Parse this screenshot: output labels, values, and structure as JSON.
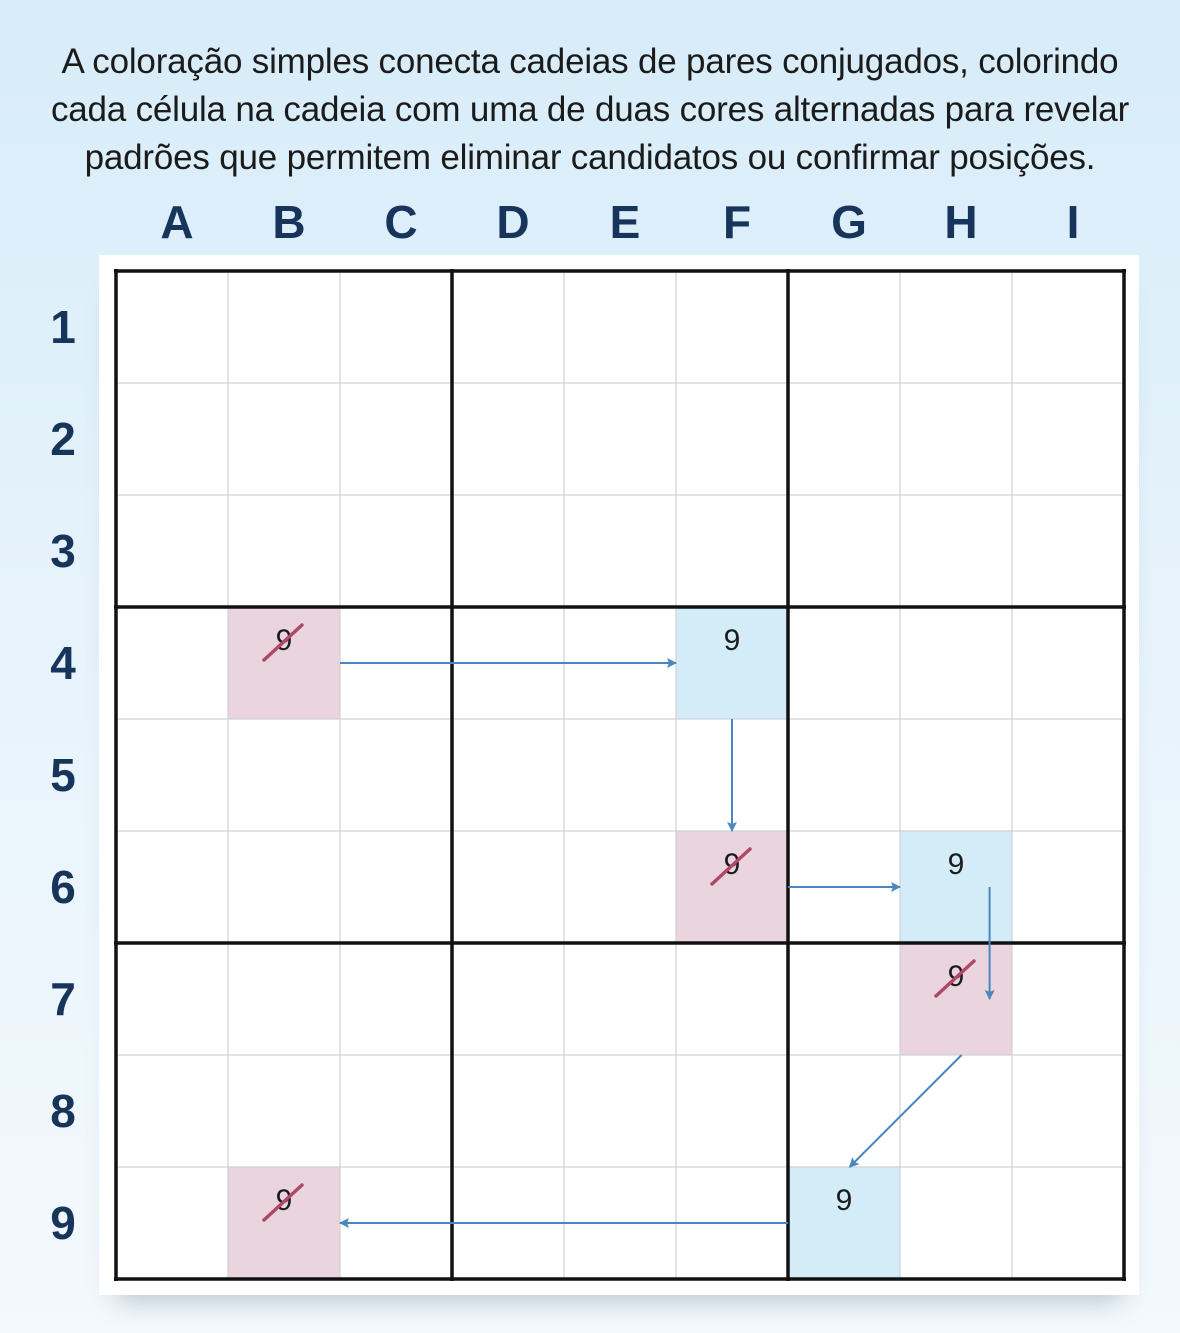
{
  "caption_lines": [
    "A coloração simples conecta cadeias de pares conjugados, colorindo",
    "cada célula na cadeia com uma de duas cores alternadas para revelar",
    "padrões que permitem eliminar candidatos ou confirmar posições."
  ],
  "columns": [
    "A",
    "B",
    "C",
    "D",
    "E",
    "F",
    "G",
    "H",
    "I"
  ],
  "rows": [
    "1",
    "2",
    "3",
    "4",
    "5",
    "6",
    "7",
    "8",
    "9"
  ],
  "colors": {
    "blue_cell": "#d3ecf8",
    "pink_cell": "#ead4de",
    "arrow": "#4a86c0",
    "strike": "#b04869",
    "row_col_label": "#17345a"
  },
  "chain": [
    {
      "cell": "B4",
      "digit": "9",
      "color": "pink",
      "eliminated": true
    },
    {
      "cell": "F4",
      "digit": "9",
      "color": "blue",
      "eliminated": false
    },
    {
      "cell": "F6",
      "digit": "9",
      "color": "pink",
      "eliminated": true
    },
    {
      "cell": "H6",
      "digit": "9",
      "color": "blue",
      "eliminated": false
    },
    {
      "cell": "H7",
      "digit": "9",
      "color": "pink",
      "eliminated": true
    },
    {
      "cell": "G9",
      "digit": "9",
      "color": "blue",
      "eliminated": false
    },
    {
      "cell": "B9",
      "digit": "9",
      "color": "pink",
      "eliminated": true
    }
  ],
  "links": [
    {
      "from": "B4",
      "to": "F4"
    },
    {
      "from": "F4",
      "to": "F6"
    },
    {
      "from": "F6",
      "to": "H6"
    },
    {
      "from": "H6",
      "to": "H7"
    },
    {
      "from": "H7",
      "to": "G9"
    },
    {
      "from": "G9",
      "to": "B9"
    }
  ]
}
